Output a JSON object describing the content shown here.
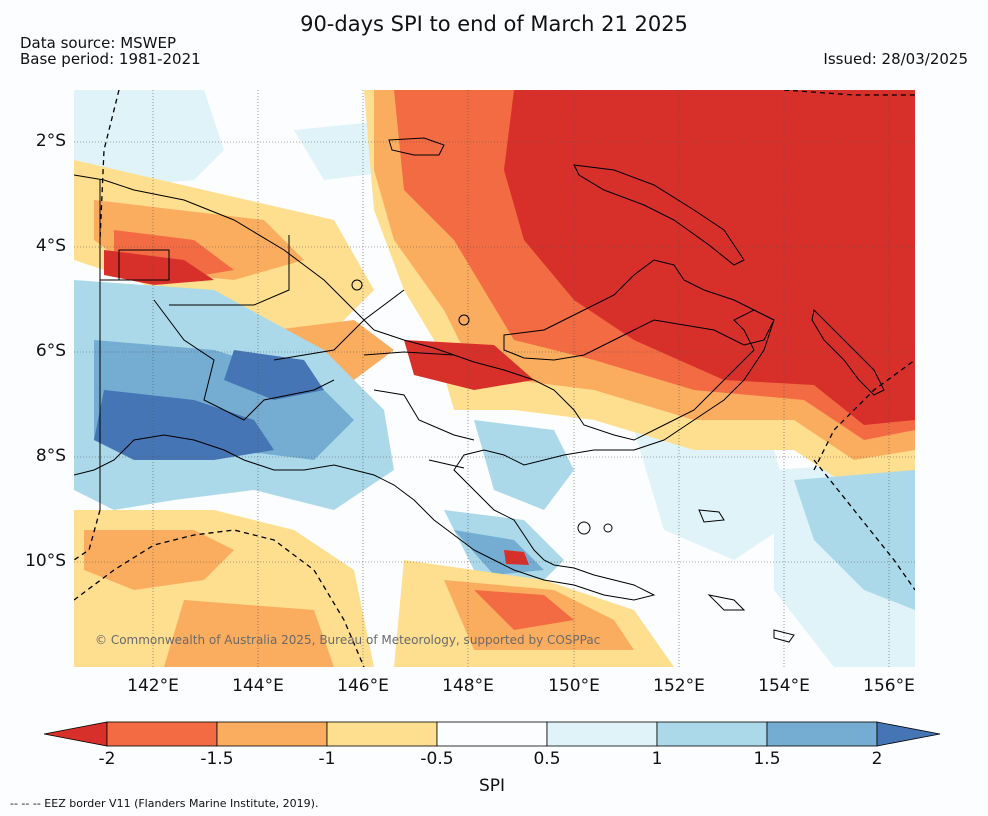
{
  "title": "90-days SPI to end of March 21 2025",
  "data_source": "Data source: MSWEP",
  "base_period": "Base period: 1981-2021",
  "issued": "Issued: 28/03/2025",
  "copyright": "© Commonwealth of Australia 2025, Bureau of Meteorology, supported by COSPPac",
  "footnote": "--  --  -- EEZ border V11 (Flanders Marine Institute, 2019).",
  "colorbar": {
    "title": "SPI",
    "ticks": [
      "-2",
      "-1.5",
      "-1",
      "-0.5",
      "0.5",
      "1",
      "1.5",
      "2"
    ],
    "colors": [
      "#d7302a",
      "#f26b43",
      "#fbad5f",
      "#fede8f",
      "#fbfdff",
      "#e0f3f8",
      "#abd9e9",
      "#74add1",
      "#4575b4"
    ]
  },
  "map": {
    "lat_labels": [
      "2°S",
      "4°S",
      "6°S",
      "8°S",
      "10°S"
    ],
    "lon_labels": [
      "142°E",
      "144°E",
      "146°E",
      "148°E",
      "150°E",
      "152°E",
      "154°E",
      "156°E"
    ],
    "extent": {
      "lon": [
        140.5,
        156.5
      ],
      "lat": [
        -12.0,
        -1.0
      ]
    }
  }
}
